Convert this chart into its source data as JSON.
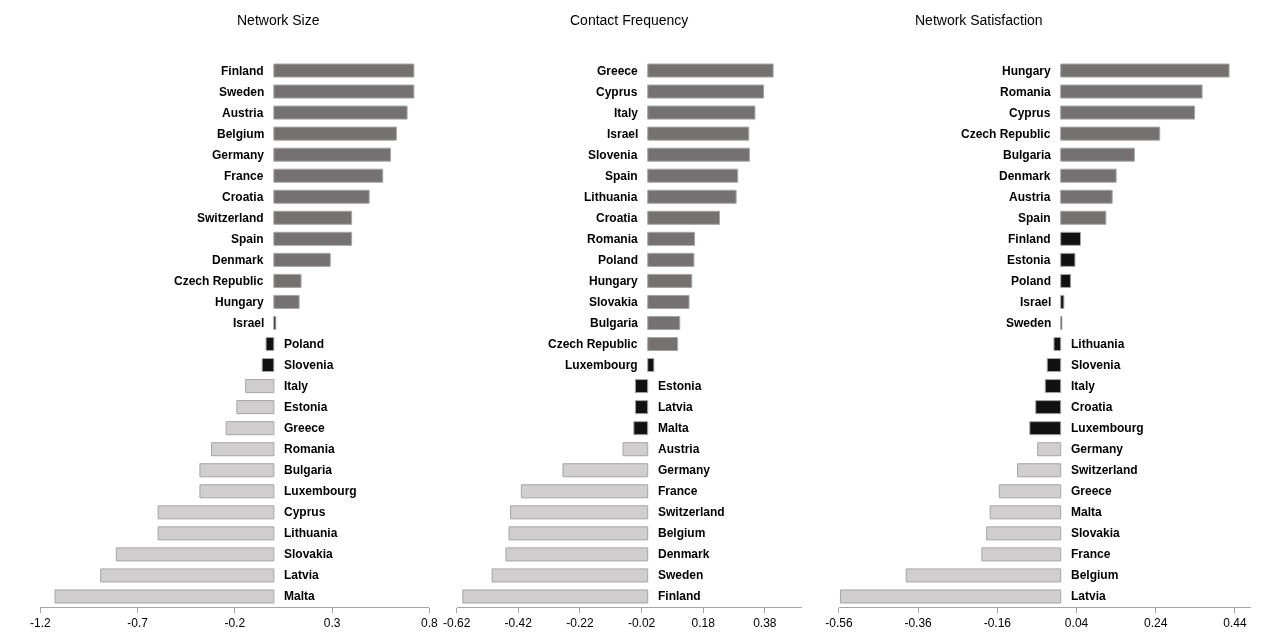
{
  "chart_data": [
    {
      "type": "bar",
      "orientation": "horizontal",
      "title": "Network Size",
      "categories": [
        "Finland",
        "Sweden",
        "Austria",
        "Belgium",
        "Germany",
        "France",
        "Croatia",
        "Switzerland",
        "Spain",
        "Denmark",
        "Czech Republic",
        "Hungary",
        "Israel",
        "Poland",
        "Slovenia",
        "Italy",
        "Estonia",
        "Greece",
        "Romania",
        "Bulgaria",
        "Luxembourg",
        "Cyprus",
        "Lithuania",
        "Slovakia",
        "Latvia",
        "Malta"
      ],
      "values": [
        0.72,
        0.72,
        0.685,
        0.63,
        0.6,
        0.56,
        0.49,
        0.4,
        0.4,
        0.29,
        0.14,
        0.13,
        0.01,
        -0.04,
        -0.06,
        -0.145,
        -0.19,
        -0.245,
        -0.32,
        -0.38,
        -0.38,
        -0.595,
        -0.595,
        -0.81,
        -0.89,
        -1.125
      ],
      "colors": [
        "#767171",
        "#767171",
        "#767171",
        "#767171",
        "#767171",
        "#767171",
        "#767171",
        "#767171",
        "#767171",
        "#767171",
        "#767171",
        "#767171",
        "#111111",
        "#111111",
        "#111111",
        "#d0cece",
        "#d0cece",
        "#d0cece",
        "#d0cece",
        "#d0cece",
        "#d0cece",
        "#d0cece",
        "#d0cece",
        "#d0cece",
        "#d0cece",
        "#d0cece"
      ],
      "xlim": [
        -1.2,
        0.8
      ],
      "xticks": [
        -1.2,
        -0.7,
        -0.2,
        0.3,
        0.8
      ]
    },
    {
      "type": "bar",
      "orientation": "horizontal",
      "title": "Contact Frequency",
      "categories": [
        "Greece",
        "Cyprus",
        "Italy",
        "Israel",
        "Slovenia",
        "Spain",
        "Lithuania",
        "Croatia",
        "Romania",
        "Poland",
        "Hungary",
        "Slovakia",
        "Bulgaria",
        "Czech Republic",
        "Luxembourg",
        "Estonia",
        "Latvia",
        "Malta",
        "Austria",
        "Germany",
        "France",
        "Switzerland",
        "Belgium",
        "Denmark",
        "Sweden",
        "Finland"
      ],
      "values": [
        0.407,
        0.376,
        0.348,
        0.328,
        0.33,
        0.292,
        0.287,
        0.233,
        0.152,
        0.15,
        0.143,
        0.134,
        0.104,
        0.097,
        0.02,
        -0.04,
        -0.04,
        -0.045,
        -0.08,
        -0.275,
        -0.41,
        -0.445,
        -0.45,
        -0.46,
        -0.505,
        -0.6
      ],
      "colors": [
        "#767171",
        "#767171",
        "#767171",
        "#767171",
        "#767171",
        "#767171",
        "#767171",
        "#767171",
        "#767171",
        "#767171",
        "#767171",
        "#767171",
        "#767171",
        "#767171",
        "#111111",
        "#111111",
        "#111111",
        "#111111",
        "#d0cece",
        "#d0cece",
        "#d0cece",
        "#d0cece",
        "#d0cece",
        "#d0cece",
        "#d0cece",
        "#d0cece"
      ],
      "xlim": [
        -0.62,
        0.5
      ],
      "xticks": [
        -0.62,
        -0.42,
        -0.22,
        -0.02,
        0.18,
        0.38
      ]
    },
    {
      "type": "bar",
      "orientation": "horizontal",
      "title": "Network Satisfaction",
      "categories": [
        "Hungary",
        "Romania",
        "Cyprus",
        "Czech Republic",
        "Bulgaria",
        "Denmark",
        "Austria",
        "Spain",
        "Finland",
        "Estonia",
        "Poland",
        "Israel",
        "Sweden",
        "Lithuania",
        "Slovenia",
        "Italy",
        "Croatia",
        "Luxembourg",
        "Germany",
        "Switzerland",
        "Greece",
        "Malta",
        "Slovakia",
        "France",
        "Belgium",
        "Latvia"
      ],
      "values": [
        0.425,
        0.357,
        0.338,
        0.25,
        0.186,
        0.14,
        0.13,
        0.114,
        0.05,
        0.036,
        0.025,
        0.008,
        0.003,
        -0.017,
        -0.034,
        -0.039,
        -0.063,
        -0.078,
        -0.058,
        -0.109,
        -0.155,
        -0.178,
        -0.187,
        -0.199,
        -0.39,
        -0.556
      ],
      "colors": [
        "#767171",
        "#767171",
        "#767171",
        "#767171",
        "#767171",
        "#767171",
        "#767171",
        "#767171",
        "#111111",
        "#111111",
        "#111111",
        "#111111",
        "#111111",
        "#111111",
        "#111111",
        "#111111",
        "#111111",
        "#111111",
        "#d0cece",
        "#d0cece",
        "#d0cece",
        "#d0cece",
        "#d0cece",
        "#d0cece",
        "#d0cece",
        "#d0cece"
      ],
      "xlim": [
        -0.56,
        0.48
      ],
      "xticks": [
        -0.56,
        -0.36,
        -0.16,
        0.04,
        0.24,
        0.44
      ]
    }
  ]
}
